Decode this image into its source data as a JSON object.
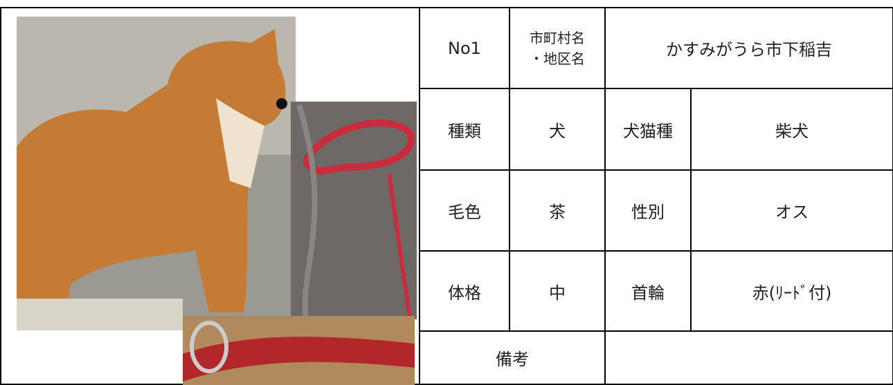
{
  "table": {
    "rows": [
      [
        "No1",
        [
          "市町村名",
          "・地区名"
        ],
        "かすみがうら市下稲吉"
      ],
      [
        "種類",
        "犬",
        "犬猫種",
        "柴犬"
      ],
      [
        "毛色",
        "茶",
        "性別",
        "オス"
      ],
      [
        "体格",
        "中",
        "首輪",
        "赤(ﾘｰﾄﾞ付)"
      ],
      [
        "備考",
        ""
      ]
    ]
  }
}
